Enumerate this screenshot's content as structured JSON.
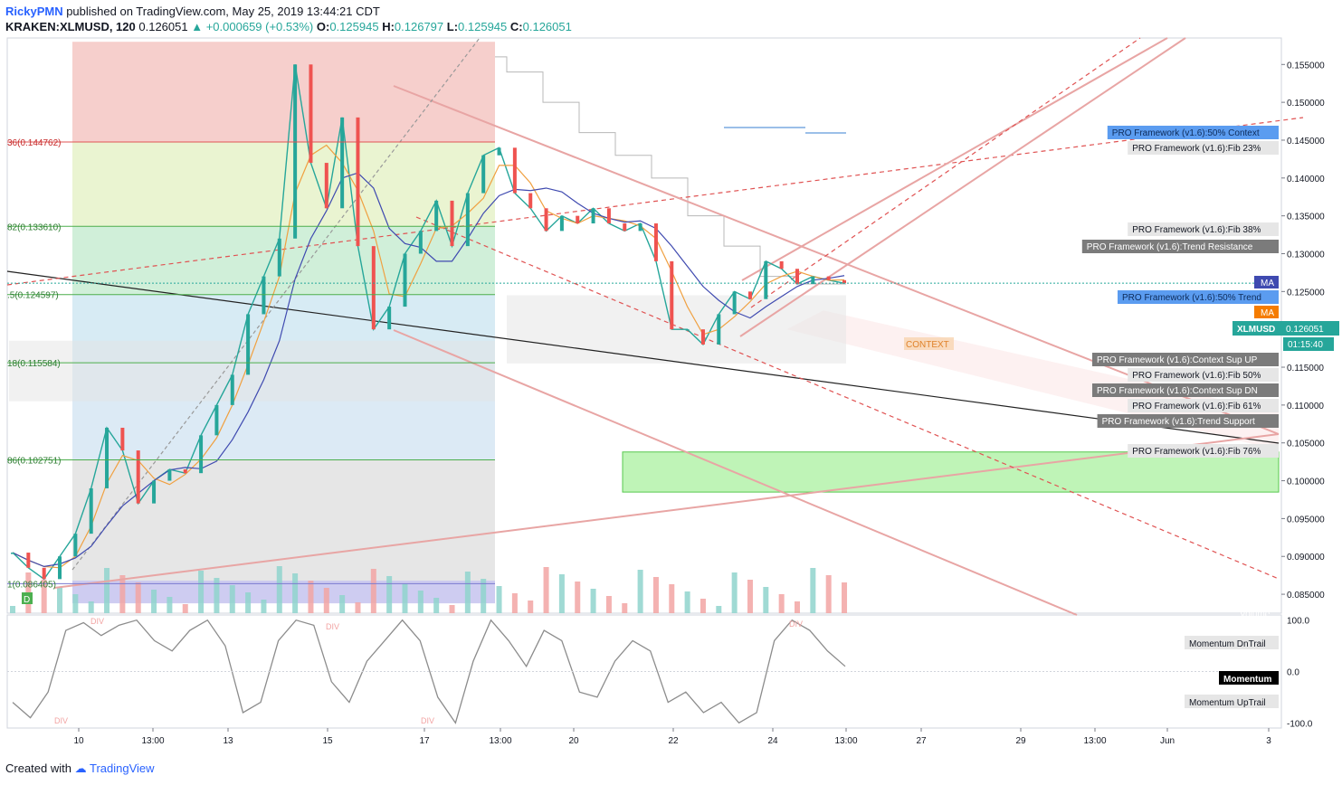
{
  "header": {
    "publisher": "RickyPMN",
    "published_text": "published on TradingView.com, May 25, 2019 13:44:21 CDT",
    "symbol": "KRAKEN:XLMUSD, 120",
    "last": "0.126051",
    "change": "▲ +0.000659 (+0.53%)",
    "o_label": "O:",
    "o": "0.125945",
    "h_label": "H:",
    "h": "0.126797",
    "l_label": "L:",
    "l": "0.125945",
    "c_label": "C:",
    "c": "0.126051"
  },
  "footer": {
    "created_with": "Created with",
    "brand": "TradingView"
  },
  "colors": {
    "up": "#26a69a",
    "down": "#ef5350",
    "accent": "#2962ff"
  },
  "chart_data": {
    "type": "line",
    "title": "KRAKEN:XLMUSD, 120",
    "x_ticks": [
      "10",
      "13:00",
      "13",
      "15",
      "17",
      "13:00",
      "20",
      "22",
      "24",
      "13:00",
      "27",
      "29",
      "13:00",
      "Jun",
      "3"
    ],
    "y_ticks": [
      "0.155000",
      "0.150000",
      "0.145000",
      "0.140000",
      "0.135000",
      "0.130000",
      "0.125000",
      "0.120000",
      "0.115000",
      "0.110000",
      "0.105000",
      "0.100000",
      "0.095000",
      "0.090000",
      "0.085000"
    ],
    "ylim": [
      0.0825,
      0.1585
    ],
    "price_series": {
      "name": "XLMUSD",
      "x_index": [
        0,
        6,
        12,
        18,
        24,
        30,
        36,
        42,
        48,
        54,
        60,
        66,
        72,
        78,
        84,
        90,
        96,
        102,
        108,
        114,
        120,
        126,
        132,
        138,
        144,
        150,
        156,
        162,
        168,
        174,
        180,
        186,
        192,
        198,
        204,
        210,
        216,
        222,
        228,
        234,
        240,
        246,
        252,
        258,
        264,
        270,
        276,
        282,
        288,
        294,
        300,
        306,
        312,
        318
      ],
      "close": [
        0.0905,
        0.0885,
        0.087,
        0.09,
        0.093,
        0.099,
        0.107,
        0.104,
        0.097,
        0.1,
        0.1015,
        0.101,
        0.106,
        0.11,
        0.114,
        0.122,
        0.127,
        0.132,
        0.155,
        0.142,
        0.136,
        0.148,
        0.131,
        0.12,
        0.123,
        0.13,
        0.133,
        0.137,
        0.131,
        0.138,
        0.143,
        0.144,
        0.138,
        0.136,
        0.133,
        0.135,
        0.134,
        0.136,
        0.134,
        0.133,
        0.134,
        0.129,
        0.12,
        0.12,
        0.118,
        0.122,
        0.125,
        0.124,
        0.129,
        0.128,
        0.126,
        0.127,
        0.1265,
        0.1261
      ]
    },
    "volume_label": "Volume",
    "fib_levels": [
      {
        "label": "36(0.144762)",
        "value": 0.144762
      },
      {
        "label": "82(0.133610)",
        "value": 0.13361
      },
      {
        "label": ".5(0.124597)",
        "value": 0.124597
      },
      {
        "label": "18(0.115584)",
        "value": 0.115584
      },
      {
        "label": "86(0.102751)",
        "value": 0.102751
      },
      {
        "label": "1(0.086405)",
        "value": 0.086405
      }
    ],
    "labels": [
      {
        "text": "PRO Framework (v1.6):50% Context",
        "style": "blue"
      },
      {
        "text": "PRO Framework (v1.6):Fib 23%",
        "style": "light"
      },
      {
        "text": "PRO Framework (v1.6):Fib 38%",
        "style": "light"
      },
      {
        "text": "PRO Framework (v1.6):Trend Resistance",
        "style": "dark"
      },
      {
        "text": "PRO Framework (v1.6):50% Trend",
        "style": "blue"
      },
      {
        "text": "PRO Framework (v1.6):Context Sup UP",
        "style": "dark"
      },
      {
        "text": "PRO Framework (v1.6):Fib 50%",
        "style": "light"
      },
      {
        "text": "PRO Framework (v1.6):Context Sup DN",
        "style": "dark"
      },
      {
        "text": "PRO Framework (v1.6):Fib 61%",
        "style": "light"
      },
      {
        "text": "PRO Framework (v1.6):Trend Support",
        "style": "dark"
      },
      {
        "text": "PRO Framework (v1.6):Fib 76%",
        "style": "light"
      }
    ],
    "ma_badges": [
      "MA",
      "MA"
    ],
    "price_badge": {
      "symbol": "XLMUSD",
      "value": "0.126051",
      "countdown": "01:15:40"
    },
    "context_text": "CONTEXT",
    "d_marker": "D",
    "momentum": {
      "name": "Momentum",
      "y_ticks": [
        "100.0",
        "0.0",
        "-100.0"
      ],
      "ylim": [
        -110,
        110
      ],
      "labels": [
        "Momentum DnTrail",
        "Momentum",
        "Momentum UpTrail"
      ],
      "div_labels": [
        "DIV",
        "DIV",
        "DIV",
        "DIV",
        "DIV"
      ],
      "values": [
        -60,
        -90,
        -40,
        80,
        95,
        70,
        90,
        100,
        60,
        40,
        80,
        100,
        50,
        -80,
        -60,
        60,
        100,
        90,
        -20,
        -60,
        20,
        60,
        100,
        60,
        -50,
        -100,
        20,
        100,
        60,
        10,
        80,
        60,
        -40,
        -50,
        20,
        60,
        40,
        -60,
        -40,
        -80,
        -60,
        -100,
        -80,
        60,
        100,
        80,
        40,
        10
      ]
    }
  }
}
